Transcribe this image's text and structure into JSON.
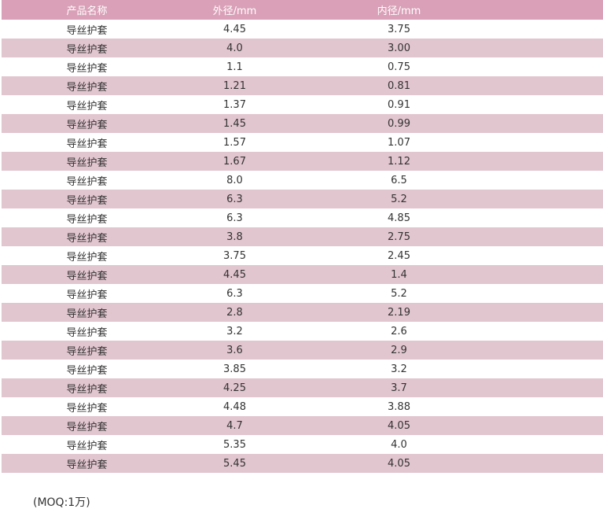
{
  "table": {
    "headers": {
      "name": "产品名称",
      "outer": "外径/mm",
      "inner": "内径/mm"
    },
    "rows": [
      {
        "name": "导丝护套",
        "outer": "4.45",
        "inner": "3.75"
      },
      {
        "name": "导丝护套",
        "outer": "4.0",
        "inner": "3.00"
      },
      {
        "name": "导丝护套",
        "outer": "1.1",
        "inner": "0.75"
      },
      {
        "name": "导丝护套",
        "outer": "1.21",
        "inner": "0.81"
      },
      {
        "name": "导丝护套",
        "outer": "1.37",
        "inner": "0.91"
      },
      {
        "name": "导丝护套",
        "outer": "1.45",
        "inner": "0.99"
      },
      {
        "name": "导丝护套",
        "outer": "1.57",
        "inner": "1.07"
      },
      {
        "name": "导丝护套",
        "outer": "1.67",
        "inner": "1.12"
      },
      {
        "name": "导丝护套",
        "outer": "8.0",
        "inner": "6.5"
      },
      {
        "name": "导丝护套",
        "outer": "6.3",
        "inner": "5.2"
      },
      {
        "name": "导丝护套",
        "outer": "6.3",
        "inner": "4.85"
      },
      {
        "name": "导丝护套",
        "outer": "3.8",
        "inner": "2.75"
      },
      {
        "name": "导丝护套",
        "outer": "3.75",
        "inner": "2.45"
      },
      {
        "name": "导丝护套",
        "outer": "4.45",
        "inner": "1.4"
      },
      {
        "name": "导丝护套",
        "outer": "6.3",
        "inner": "5.2"
      },
      {
        "name": "导丝护套",
        "outer": "2.8",
        "inner": "2.19"
      },
      {
        "name": "导丝护套",
        "outer": "3.2",
        "inner": "2.6"
      },
      {
        "name": "导丝护套",
        "outer": "3.6",
        "inner": "2.9"
      },
      {
        "name": "导丝护套",
        "outer": "3.85",
        "inner": "3.2"
      },
      {
        "name": "导丝护套",
        "outer": "4.25",
        "inner": "3.7"
      },
      {
        "name": "导丝护套",
        "outer": "4.48",
        "inner": "3.88"
      },
      {
        "name": "导丝护套",
        "outer": "4.7",
        "inner": "4.05"
      },
      {
        "name": "导丝护套",
        "outer": "5.35",
        "inner": "4.0"
      },
      {
        "name": "导丝护套",
        "outer": "5.45",
        "inner": "4.05"
      }
    ]
  },
  "moq_note": "(MOQ:1万)",
  "colors": {
    "header_bg": "#d9a0b7",
    "stripe_bg": "#e1c5cf",
    "text": "#333333"
  }
}
